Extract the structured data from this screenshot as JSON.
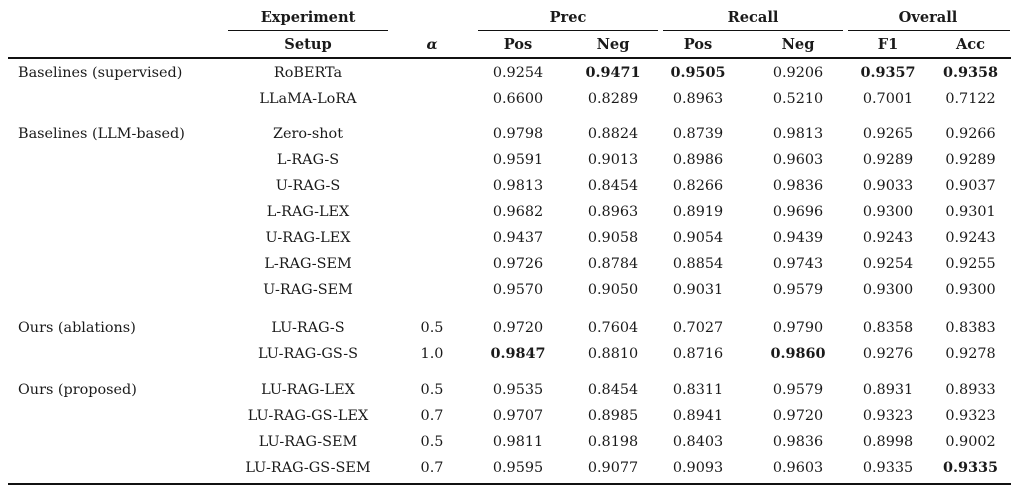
{
  "headers": {
    "experiment": "Experiment",
    "setup": "Setup",
    "alpha": "α",
    "prec": "Prec",
    "recall": "Recall",
    "overall": "Overall",
    "pos": "Pos",
    "neg": "Neg",
    "pos2": "Pos",
    "neg2": "Neg",
    "f1": "F1",
    "acc": "Acc"
  },
  "groups": [
    {
      "label": "Baselines (supervised)",
      "rows": [
        {
          "setup": "RoBERTa",
          "alpha": "",
          "vals": [
            "0.9254",
            "0.9471",
            "0.9505",
            "0.9206",
            "0.9357",
            "0.9358"
          ],
          "bold": [
            false,
            true,
            true,
            false,
            true,
            true
          ]
        },
        {
          "setup": "LLaMA-LoRA",
          "alpha": "",
          "vals": [
            "0.6600",
            "0.8289",
            "0.8963",
            "0.5210",
            "0.7001",
            "0.7122"
          ],
          "bold": [
            false,
            false,
            false,
            false,
            false,
            false
          ]
        }
      ]
    },
    {
      "label": "Baselines (LLM-based)",
      "rows": [
        {
          "setup": "Zero-shot",
          "alpha": "",
          "vals": [
            "0.9798",
            "0.8824",
            "0.8739",
            "0.9813",
            "0.9265",
            "0.9266"
          ],
          "bold": [
            false,
            false,
            false,
            false,
            false,
            false
          ]
        },
        {
          "setup": "L-RAG-S",
          "alpha": "",
          "vals": [
            "0.9591",
            "0.9013",
            "0.8986",
            "0.9603",
            "0.9289",
            "0.9289"
          ],
          "bold": [
            false,
            false,
            false,
            false,
            false,
            false
          ]
        },
        {
          "setup": "U-RAG-S",
          "alpha": "",
          "vals": [
            "0.9813",
            "0.8454",
            "0.8266",
            "0.9836",
            "0.9033",
            "0.9037"
          ],
          "bold": [
            false,
            false,
            false,
            false,
            false,
            false
          ]
        },
        {
          "setup": "L-RAG-LEX",
          "alpha": "",
          "vals": [
            "0.9682",
            "0.8963",
            "0.8919",
            "0.9696",
            "0.9300",
            "0.9301"
          ],
          "bold": [
            false,
            false,
            false,
            false,
            false,
            false
          ]
        },
        {
          "setup": "U-RAG-LEX",
          "alpha": "",
          "vals": [
            "0.9437",
            "0.9058",
            "0.9054",
            "0.9439",
            "0.9243",
            "0.9243"
          ],
          "bold": [
            false,
            false,
            false,
            false,
            false,
            false
          ]
        },
        {
          "setup": "L-RAG-SEM",
          "alpha": "",
          "vals": [
            "0.9726",
            "0.8784",
            "0.8854",
            "0.9743",
            "0.9254",
            "0.9255"
          ],
          "bold": [
            false,
            false,
            false,
            false,
            false,
            false
          ]
        },
        {
          "setup": "U-RAG-SEM",
          "alpha": "",
          "vals": [
            "0.9570",
            "0.9050",
            "0.9031",
            "0.9579",
            "0.9300",
            "0.9300"
          ],
          "bold": [
            false,
            false,
            false,
            false,
            false,
            false
          ]
        }
      ]
    },
    {
      "label": "Ours (ablations)",
      "rows": [
        {
          "setup": "LU-RAG-S",
          "alpha": "0.5",
          "vals": [
            "0.9720",
            "0.7604",
            "0.7027",
            "0.9790",
            "0.8358",
            "0.8383"
          ],
          "bold": [
            false,
            false,
            false,
            false,
            false,
            false
          ]
        },
        {
          "setup": "LU-RAG-GS-S",
          "alpha": "1.0",
          "vals": [
            "0.9847",
            "0.8810",
            "0.8716",
            "0.9860",
            "0.9276",
            "0.9278"
          ],
          "bold": [
            true,
            false,
            false,
            true,
            false,
            false
          ]
        }
      ]
    },
    {
      "label": "Ours (proposed)",
      "rows": [
        {
          "setup": "LU-RAG-LEX",
          "alpha": "0.5",
          "vals": [
            "0.9535",
            "0.8454",
            "0.8311",
            "0.9579",
            "0.8931",
            "0.8933"
          ],
          "bold": [
            false,
            false,
            false,
            false,
            false,
            false
          ]
        },
        {
          "setup": "LU-RAG-GS-LEX",
          "alpha": "0.7",
          "vals": [
            "0.9707",
            "0.8985",
            "0.8941",
            "0.9720",
            "0.9323",
            "0.9323"
          ],
          "bold": [
            false,
            false,
            false,
            false,
            false,
            false
          ]
        },
        {
          "setup": "LU-RAG-SEM",
          "alpha": "0.5",
          "vals": [
            "0.9811",
            "0.8198",
            "0.8403",
            "0.9836",
            "0.8998",
            "0.9002"
          ],
          "bold": [
            false,
            false,
            false,
            false,
            false,
            false
          ]
        },
        {
          "setup": "LU-RAG-GS-SEM",
          "alpha": "0.7",
          "vals": [
            "0.9595",
            "0.9077",
            "0.9093",
            "0.9603",
            "0.9335",
            "0.9335"
          ],
          "bold": [
            false,
            false,
            false,
            false,
            false,
            true
          ]
        }
      ]
    }
  ]
}
